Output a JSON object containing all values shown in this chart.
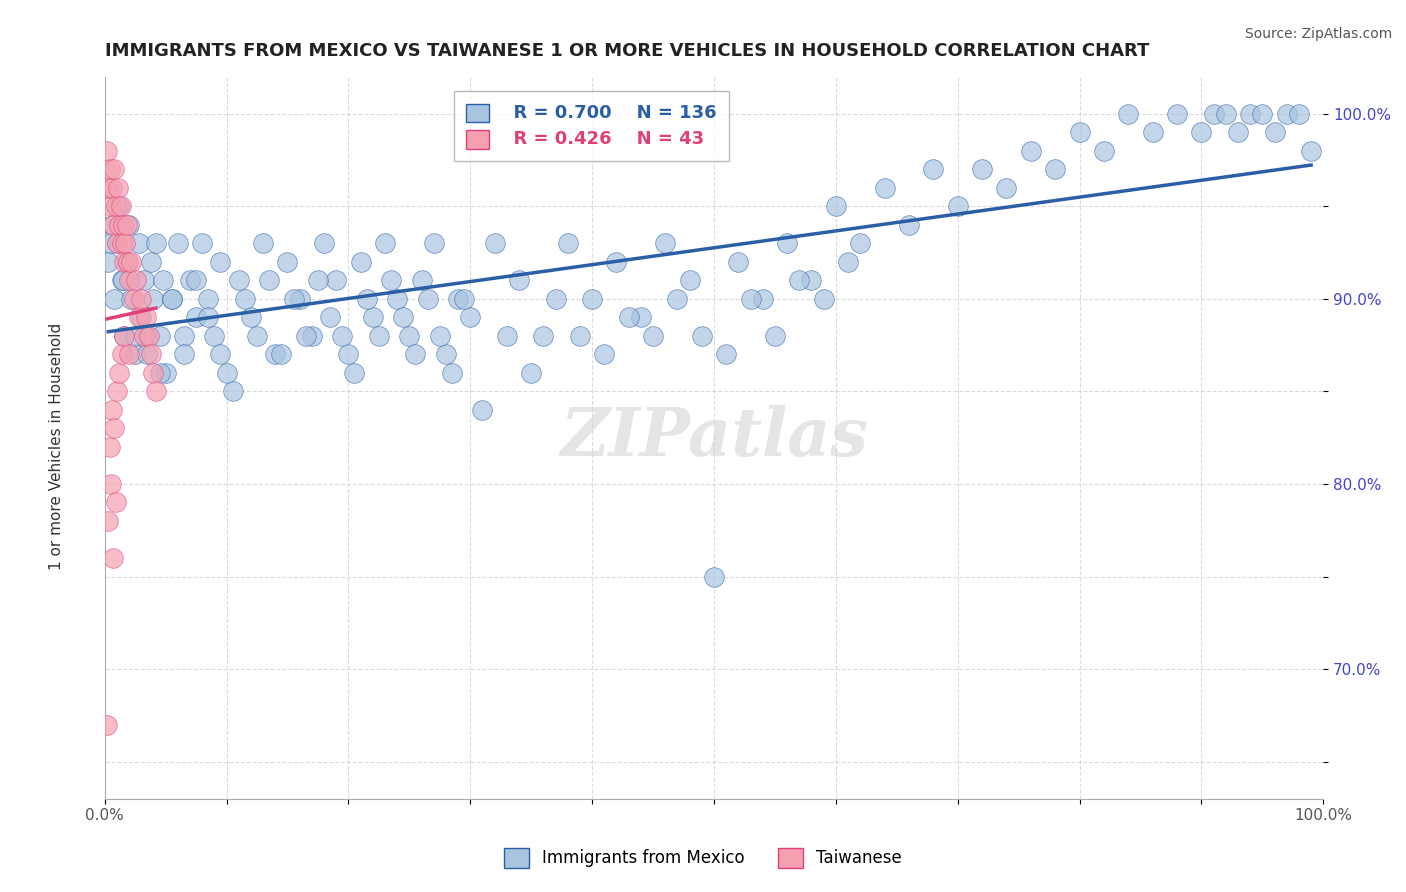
{
  "title": "IMMIGRANTS FROM MEXICO VS TAIWANESE 1 OR MORE VEHICLES IN HOUSEHOLD CORRELATION CHART",
  "source_text": "Source: ZipAtlas.com",
  "xlabel": "",
  "ylabel": "1 or more Vehicles in Household",
  "watermark": "ZIPatlas",
  "xlim": [
    0.0,
    1.0
  ],
  "ylim": [
    0.63,
    1.02
  ],
  "x_ticks": [
    0.0,
    0.1,
    0.2,
    0.3,
    0.4,
    0.5,
    0.6,
    0.7,
    0.8,
    0.9,
    1.0
  ],
  "x_tick_labels": [
    "0.0%",
    "",
    "",
    "",
    "",
    "",
    "",
    "",
    "",
    "",
    "100.0%"
  ],
  "y_ticks": [
    0.65,
    0.7,
    0.75,
    0.8,
    0.85,
    0.9,
    0.95,
    1.0
  ],
  "y_tick_labels": [
    "",
    "70.0%",
    "",
    "80.0%",
    "",
    "90.0%",
    "",
    "100.0%"
  ],
  "legend_blue_label": "Immigrants from Mexico",
  "legend_pink_label": "Taiwanese",
  "R_blue": 0.7,
  "N_blue": 136,
  "R_pink": 0.426,
  "N_pink": 43,
  "blue_color": "#a8c4e0",
  "blue_line_color": "#2b5fa5",
  "pink_color": "#f4a0b0",
  "pink_line_color": "#e0407a",
  "blue_scatter_x": [
    0.003,
    0.006,
    0.008,
    0.01,
    0.012,
    0.014,
    0.016,
    0.018,
    0.02,
    0.022,
    0.025,
    0.028,
    0.03,
    0.032,
    0.035,
    0.038,
    0.04,
    0.042,
    0.045,
    0.048,
    0.05,
    0.055,
    0.06,
    0.065,
    0.07,
    0.075,
    0.08,
    0.085,
    0.09,
    0.095,
    0.1,
    0.11,
    0.12,
    0.13,
    0.14,
    0.15,
    0.16,
    0.17,
    0.18,
    0.19,
    0.2,
    0.21,
    0.22,
    0.23,
    0.24,
    0.25,
    0.26,
    0.27,
    0.28,
    0.29,
    0.3,
    0.32,
    0.34,
    0.36,
    0.38,
    0.4,
    0.42,
    0.44,
    0.46,
    0.48,
    0.5,
    0.52,
    0.54,
    0.56,
    0.58,
    0.6,
    0.62,
    0.64,
    0.66,
    0.68,
    0.7,
    0.72,
    0.74,
    0.76,
    0.78,
    0.8,
    0.82,
    0.84,
    0.86,
    0.88,
    0.9,
    0.91,
    0.92,
    0.93,
    0.94,
    0.95,
    0.96,
    0.97,
    0.98,
    0.99,
    0.005,
    0.015,
    0.025,
    0.035,
    0.045,
    0.055,
    0.065,
    0.075,
    0.085,
    0.095,
    0.105,
    0.115,
    0.125,
    0.135,
    0.145,
    0.155,
    0.165,
    0.175,
    0.185,
    0.195,
    0.205,
    0.215,
    0.225,
    0.235,
    0.245,
    0.255,
    0.265,
    0.275,
    0.285,
    0.295,
    0.31,
    0.33,
    0.35,
    0.37,
    0.39,
    0.41,
    0.43,
    0.45,
    0.47,
    0.49,
    0.51,
    0.53,
    0.55,
    0.57,
    0.59,
    0.61
  ],
  "blue_scatter_y": [
    0.92,
    0.94,
    0.9,
    0.93,
    0.95,
    0.91,
    0.88,
    0.92,
    0.94,
    0.9,
    0.87,
    0.93,
    0.89,
    0.91,
    0.88,
    0.92,
    0.9,
    0.93,
    0.88,
    0.91,
    0.86,
    0.9,
    0.93,
    0.88,
    0.91,
    0.89,
    0.93,
    0.9,
    0.88,
    0.92,
    0.86,
    0.91,
    0.89,
    0.93,
    0.87,
    0.92,
    0.9,
    0.88,
    0.93,
    0.91,
    0.87,
    0.92,
    0.89,
    0.93,
    0.9,
    0.88,
    0.91,
    0.93,
    0.87,
    0.9,
    0.89,
    0.93,
    0.91,
    0.88,
    0.93,
    0.9,
    0.92,
    0.89,
    0.93,
    0.91,
    0.75,
    0.92,
    0.9,
    0.93,
    0.91,
    0.95,
    0.93,
    0.96,
    0.94,
    0.97,
    0.95,
    0.97,
    0.96,
    0.98,
    0.97,
    0.99,
    0.98,
    1.0,
    0.99,
    1.0,
    0.99,
    1.0,
    1.0,
    0.99,
    1.0,
    1.0,
    0.99,
    1.0,
    1.0,
    0.98,
    0.93,
    0.91,
    0.88,
    0.87,
    0.86,
    0.9,
    0.87,
    0.91,
    0.89,
    0.87,
    0.85,
    0.9,
    0.88,
    0.91,
    0.87,
    0.9,
    0.88,
    0.91,
    0.89,
    0.88,
    0.86,
    0.9,
    0.88,
    0.91,
    0.89,
    0.87,
    0.9,
    0.88,
    0.86,
    0.9,
    0.84,
    0.88,
    0.86,
    0.9,
    0.88,
    0.87,
    0.89,
    0.88,
    0.9,
    0.88,
    0.87,
    0.9,
    0.88,
    0.91,
    0.9,
    0.92
  ],
  "pink_scatter_x": [
    0.002,
    0.003,
    0.004,
    0.005,
    0.006,
    0.007,
    0.008,
    0.009,
    0.01,
    0.011,
    0.012,
    0.013,
    0.014,
    0.015,
    0.016,
    0.017,
    0.018,
    0.019,
    0.02,
    0.022,
    0.024,
    0.026,
    0.028,
    0.03,
    0.032,
    0.034,
    0.036,
    0.038,
    0.04,
    0.042,
    0.002,
    0.003,
    0.004,
    0.005,
    0.006,
    0.007,
    0.008,
    0.009,
    0.01,
    0.012,
    0.014,
    0.016,
    0.02
  ],
  "pink_scatter_y": [
    0.98,
    0.96,
    0.97,
    0.95,
    0.96,
    0.94,
    0.97,
    0.95,
    0.93,
    0.96,
    0.94,
    0.95,
    0.93,
    0.94,
    0.92,
    0.93,
    0.94,
    0.92,
    0.91,
    0.92,
    0.9,
    0.91,
    0.89,
    0.9,
    0.88,
    0.89,
    0.88,
    0.87,
    0.86,
    0.85,
    0.67,
    0.78,
    0.82,
    0.8,
    0.84,
    0.76,
    0.83,
    0.79,
    0.85,
    0.86,
    0.87,
    0.88,
    0.87
  ],
  "background_color": "#ffffff",
  "grid_color": "#cccccc"
}
